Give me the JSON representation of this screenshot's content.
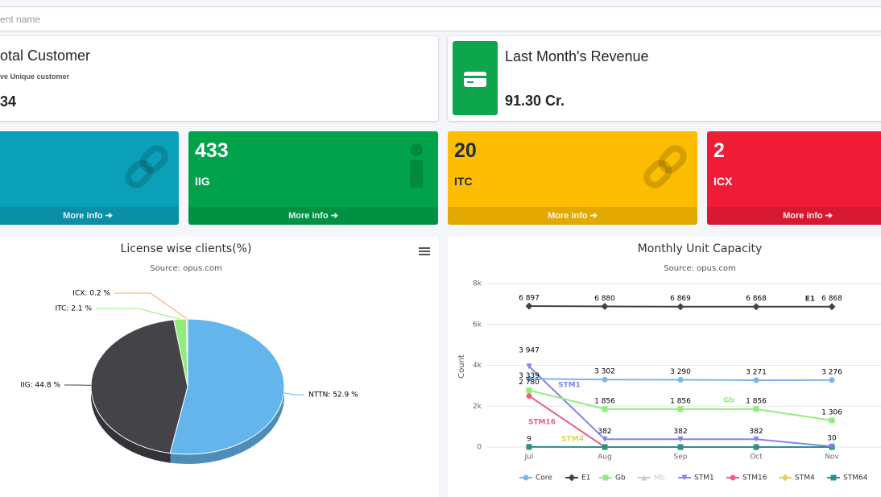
{
  "search": {
    "placeholder": "ent name"
  },
  "cards": [
    {
      "title": "otal Customer",
      "subtitle": "ve Unique customer",
      "value": "34"
    },
    {
      "title": "Last Month's Revenue",
      "value": "91.30 Cr."
    }
  ],
  "boxes": [
    {
      "footer": "More info"
    },
    {
      "value": "433",
      "label": "IIG",
      "footer": "More info"
    },
    {
      "value": "20",
      "label": "ITC",
      "footer": "More info"
    },
    {
      "value": "2",
      "label": "ICX",
      "footer": "More info"
    }
  ],
  "chart_data": [
    {
      "type": "pie",
      "title": "License wise clients(%)",
      "subtitle": "Source: opus.com",
      "categories": [
        "NTTN",
        "IIG",
        "ITC",
        "ICX"
      ],
      "values": [
        52.9,
        44.8,
        2.1,
        0.2
      ],
      "value_labels": [
        "NTTN: 52.9 %",
        "IIG: 44.8 %",
        "ITC: 2.1 %",
        "ICX: 0.2 %"
      ],
      "colors": [
        "#64b5ec",
        "#434348",
        "#90ed7d",
        "#f7a35c"
      ]
    },
    {
      "type": "line",
      "title": "Monthly Unit Capacity",
      "subtitle": "Source: opus.com",
      "y_label": "Count",
      "categories": [
        "Jul",
        "Aug",
        "Sep",
        "Oct",
        "Nov"
      ],
      "ylim": [
        0,
        8000
      ],
      "yticks": [
        0,
        {
          "value": 2000,
          "label": "2k"
        },
        {
          "value": 4000,
          "label": "4k"
        },
        {
          "value": 6000,
          "label": "6k"
        },
        {
          "value": 8000,
          "label": "8k"
        }
      ],
      "grid": true,
      "series": [
        {
          "name": "Core",
          "color": "#7cb5ec",
          "marker": "circle",
          "values": [
            3339,
            3302,
            3290,
            3271,
            3276
          ],
          "value_labels": [
            "3 339",
            "3 302",
            "3 290",
            "3 271",
            "3 276"
          ]
        },
        {
          "name": "E1",
          "color": "#434348",
          "marker": "diamond",
          "values": [
            6897,
            6880,
            6869,
            6868,
            6868
          ],
          "value_labels": [
            "6 897",
            "6 880",
            "6 869",
            "6 868",
            "6 868"
          ]
        },
        {
          "name": "Gb",
          "color": "#90ed7d",
          "marker": "square",
          "values": [
            2780,
            1856,
            1856,
            1856,
            1306
          ],
          "value_labels": [
            "2 780",
            "1 856",
            "1 856",
            "1 856",
            "1 306"
          ]
        },
        {
          "name": "Mb",
          "color": "#cccccc",
          "marker": "triangle",
          "visible": false,
          "values": [
            null,
            null,
            null,
            null,
            null
          ]
        },
        {
          "name": "STM1",
          "color": "#8085e9",
          "marker": "triangle-down",
          "values": [
            3947,
            382,
            382,
            382,
            30
          ],
          "value_labels": [
            "3 947",
            "382",
            "382",
            "382",
            "30"
          ]
        },
        {
          "name": "STM16",
          "color": "#f15c80",
          "marker": "circle",
          "values": [
            2500,
            0,
            0,
            0,
            0
          ]
        },
        {
          "name": "STM4",
          "color": "#e4d354",
          "marker": "diamond",
          "values": [
            0,
            0,
            0,
            0,
            0
          ]
        },
        {
          "name": "STM64",
          "color": "#2b908f",
          "marker": "square",
          "values": [
            9,
            0,
            0,
            0,
            0
          ],
          "value_labels": [
            "9",
            null,
            null,
            null,
            null
          ]
        }
      ]
    }
  ]
}
